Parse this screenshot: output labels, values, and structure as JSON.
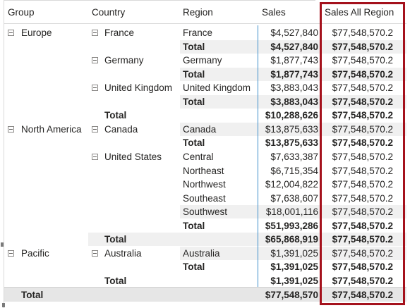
{
  "headers": {
    "group": "Group",
    "country": "Country",
    "region": "Region",
    "sales": "Sales",
    "sales_all_region": "Sales All Region"
  },
  "groups": {
    "europe": "Europe",
    "north_america": "North America",
    "pacific": "Pacific"
  },
  "countries": {
    "france": "France",
    "germany": "Germany",
    "uk": "United Kingdom",
    "canada": "Canada",
    "us": "United States",
    "australia": "Australia"
  },
  "total_label": "Total",
  "rows": [
    {
      "region": "France",
      "sales": "$4,527,840",
      "all": "$77,548,570.2"
    },
    {
      "region": "Total",
      "sales": "$4,527,840",
      "all": "$77,548,570.2"
    },
    {
      "region": "Germany",
      "sales": "$1,877,743",
      "all": "$77,548,570.2"
    },
    {
      "region": "Total",
      "sales": "$1,877,743",
      "all": "$77,548,570.2"
    },
    {
      "region": "United Kingdom",
      "sales": "$3,883,043",
      "all": "$77,548,570.2"
    },
    {
      "region": "Total",
      "sales": "$3,883,043",
      "all": "$77,548,570.2"
    },
    {
      "region": "Total",
      "sales": "$10,288,626",
      "all": "$77,548,570.2"
    },
    {
      "region": "Canada",
      "sales": "$13,875,633",
      "all": "$77,548,570.2"
    },
    {
      "region": "Total",
      "sales": "$13,875,633",
      "all": "$77,548,570.2"
    },
    {
      "region": "Central",
      "sales": "$7,633,387",
      "all": "$77,548,570.2"
    },
    {
      "region": "Northeast",
      "sales": "$6,715,354",
      "all": "$77,548,570.2"
    },
    {
      "region": "Northwest",
      "sales": "$12,004,822",
      "all": "$77,548,570.2"
    },
    {
      "region": "Southeast",
      "sales": "$7,638,607",
      "all": "$77,548,570.2"
    },
    {
      "region": "Southwest",
      "sales": "$18,001,116",
      "all": "$77,548,570.2"
    },
    {
      "region": "Total",
      "sales": "$51,993,286",
      "all": "$77,548,570.2"
    },
    {
      "region": "Total",
      "sales": "$65,868,919",
      "all": "$77,548,570.2"
    },
    {
      "region": "Australia",
      "sales": "$1,391,025",
      "all": "$77,548,570.2"
    },
    {
      "region": "Total",
      "sales": "$1,391,025",
      "all": "$77,548,570.2"
    },
    {
      "region": "Total",
      "sales": "$1,391,025",
      "all": "$77,548,570.2"
    }
  ],
  "grand_total": {
    "label": "Total",
    "sales": "$77,548,570",
    "all": "$77,548,570.2"
  },
  "colors": {
    "highlight_border": "#a4111c",
    "divider": "#3d8ec9",
    "band": "#f0f0f0"
  }
}
